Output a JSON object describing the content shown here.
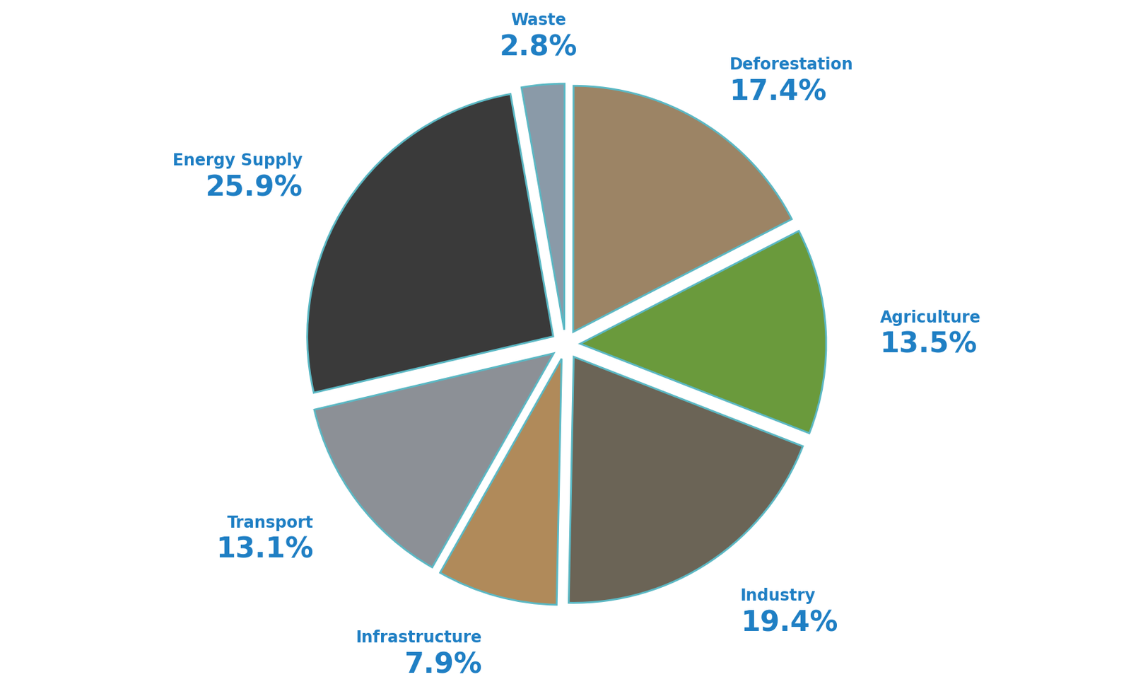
{
  "chart_data": {
    "type": "pie",
    "categories": [
      "Waste",
      "Deforestation",
      "Agriculture",
      "Industry",
      "Infrastructure",
      "Transport",
      "Energy Supply"
    ],
    "values": [
      2.8,
      17.4,
      13.5,
      19.4,
      7.9,
      13.1,
      25.9
    ],
    "value_labels": [
      "2.8%",
      "17.4%",
      "13.5%",
      "19.4%",
      "7.9%",
      "13.1%",
      "25.9%"
    ],
    "colors": [
      "#8a9aa8",
      "#9c8465",
      "#6a9a3c",
      "#6b6456",
      "#b08a5a",
      "#8c9096",
      "#3a3a3a"
    ],
    "data_labels": true
  }
}
